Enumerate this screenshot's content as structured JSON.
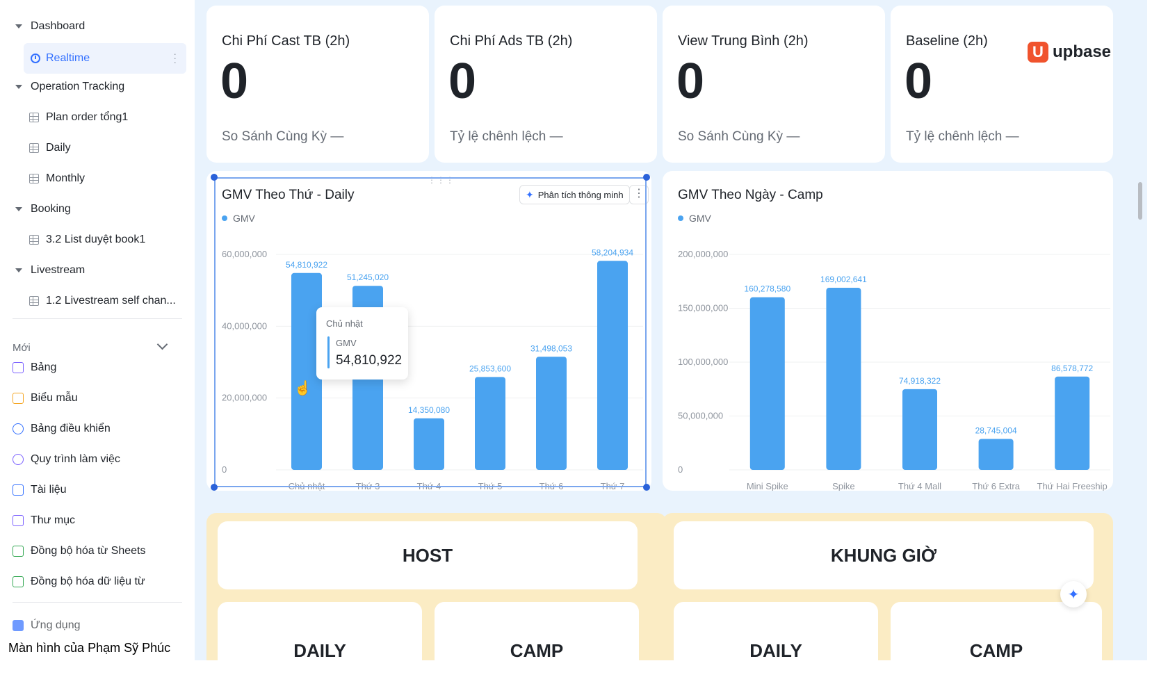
{
  "sidebar": {
    "dashboard": "Dashboard",
    "realtime": "Realtime",
    "operation_tracking": "Operation Tracking",
    "plan_order": "Plan order tổng1",
    "daily": "Daily",
    "monthly": "Monthly",
    "booking": "Booking",
    "list_duyet": "3.2 List duyệt book1",
    "livestream": "Livestream",
    "livestream_self": "1.2 Livestream self chan...",
    "moi": "Mới",
    "create_items": [
      {
        "label": "Bảng",
        "color": "#7b61ff"
      },
      {
        "label": "Biểu mẫu",
        "color": "#f5a623"
      },
      {
        "label": "Bảng điều khiển",
        "color": "#3370ff"
      },
      {
        "label": "Quy trình làm việc",
        "color": "#7b61ff"
      },
      {
        "label": "Tài liệu",
        "color": "#3370ff"
      },
      {
        "label": "Thư mục",
        "color": "#7b61ff"
      },
      {
        "label": "Đồng bộ hóa từ Sheets",
        "color": "#34a853"
      },
      {
        "label": "Đồng bộ hóa dữ liệu từ",
        "color": "#34a853"
      }
    ],
    "ung_dung": "Ứng dụng"
  },
  "caption": "Màn hình của Phạm Sỹ Phúc",
  "logo": {
    "text": "upbase",
    "mark": "U"
  },
  "kpis": [
    {
      "title": "Chi Phí Cast TB (2h)",
      "value": "0",
      "foot": "So Sánh Cùng Kỳ —"
    },
    {
      "title": "Chi Phí Ads TB (2h)",
      "value": "0",
      "foot": "Tỷ lệ chênh lệch —"
    },
    {
      "title": "View Trung Bình (2h)",
      "value": "0",
      "foot": "So Sánh Cùng Kỳ —"
    },
    {
      "title": "Baseline (2h)",
      "value": "0",
      "foot": "Tỷ lệ chênh lệch —"
    }
  ],
  "chart_card_1": {
    "ai_button": "Phân tích thông minh",
    "legend": "GMV"
  },
  "chart_card_2": {
    "legend": "GMV"
  },
  "tooltip": {
    "title": "Chủ nhật",
    "series": "GMV",
    "value": "54,810,922"
  },
  "chart_data": [
    {
      "type": "bar",
      "title": "GMV Theo Thứ - Daily",
      "categories": [
        "Chủ nhật",
        "Thứ 3",
        "Thứ 4",
        "Thứ 5",
        "Thứ 6",
        "Thứ 7"
      ],
      "series": [
        {
          "name": "GMV",
          "values": [
            54810922,
            51245020,
            14350080,
            25853600,
            31498053,
            58204934
          ]
        }
      ],
      "value_labels": [
        "54,810,922",
        "51,245,020",
        "14,350,080",
        "25,853,600",
        "31,498,053",
        "58,204,934"
      ],
      "yticks": [
        "60,000,000",
        "40,000,000",
        "20,000,000",
        "0"
      ],
      "ylim": [
        0,
        60000000
      ],
      "color": "#4aa3f0"
    },
    {
      "type": "bar",
      "title": "GMV Theo Ngày - Camp",
      "categories": [
        "Mini Spike",
        "Spike",
        "Thứ 4 Mall",
        "Thứ 6 Extra",
        "Thứ Hai Freeship"
      ],
      "series": [
        {
          "name": "GMV",
          "values": [
            160278580,
            169002641,
            74918322,
            28745004,
            86578772
          ]
        }
      ],
      "value_labels": [
        "160,278,580",
        "169,002,641",
        "74,918,322",
        "28,745,004",
        "86,578,772"
      ],
      "yticks": [
        "200,000,000",
        "150,000,000",
        "100,000,000",
        "50,000,000",
        "0"
      ],
      "ylim": [
        0,
        200000000
      ],
      "color": "#4aa3f0"
    }
  ],
  "bottom": {
    "left_header": "HOST",
    "right_header": "KHUNG GIỜ",
    "daily": "DAILY",
    "camp": "CAMP"
  }
}
